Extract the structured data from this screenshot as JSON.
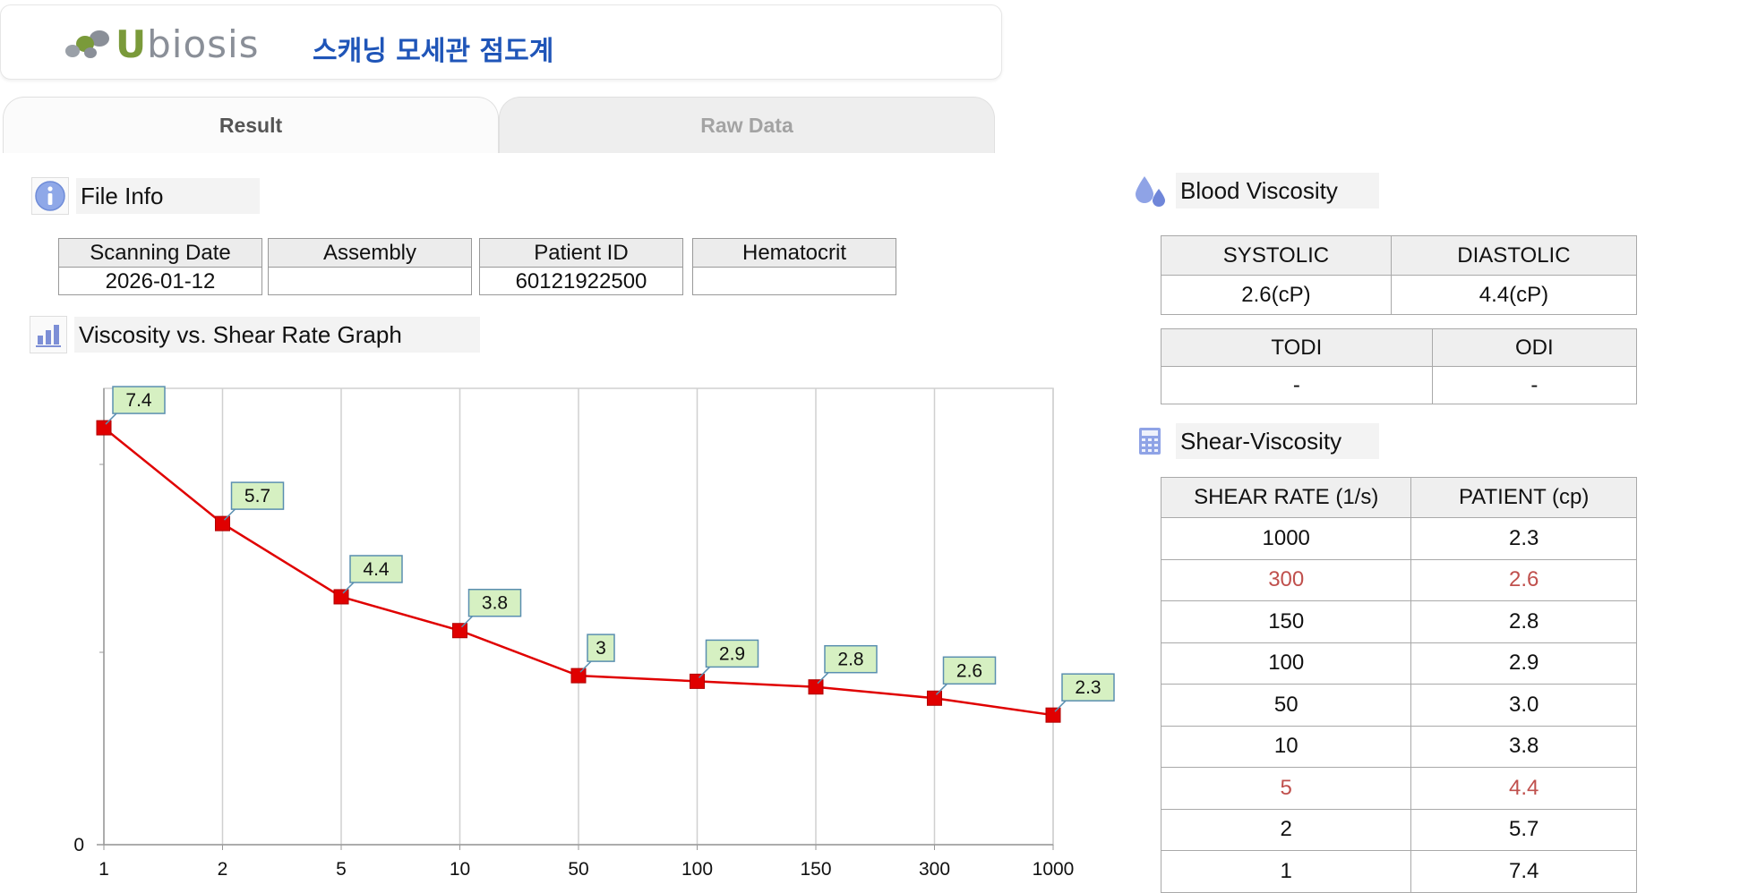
{
  "header": {
    "logo_text": "Ubiosis",
    "app_title": "스캐닝 모세관 점도계"
  },
  "tabs": [
    {
      "label": "Result",
      "active": true
    },
    {
      "label": "Raw Data",
      "active": false
    }
  ],
  "file_info": {
    "title": "File Info",
    "icon": "info-icon",
    "fields": [
      {
        "label": "Scanning Date",
        "value": "2026-01-12"
      },
      {
        "label": "Assembly",
        "value": ""
      },
      {
        "label": "Patient ID",
        "value": "60121922500"
      },
      {
        "label": "Hematocrit",
        "value": ""
      }
    ]
  },
  "graph_section": {
    "title": "Viscosity vs. Shear Rate Graph",
    "icon": "bar-chart-icon"
  },
  "blood_viscosity": {
    "title": "Blood Viscosity",
    "icon": "droplets-icon",
    "headers1": [
      "SYSTOLIC",
      "DIASTOLIC"
    ],
    "values1": [
      "2.6(cP)",
      "4.4(cP)"
    ],
    "headers2": [
      "TODI",
      "ODI"
    ],
    "values2": [
      "-",
      "-"
    ]
  },
  "shear_viscosity": {
    "title": "Shear-Viscosity",
    "icon": "calculator-icon",
    "headers": [
      "SHEAR RATE (1/s)",
      "PATIENT (cp)"
    ],
    "rows": [
      {
        "rate": "1000",
        "patient": "2.3",
        "highlight": false
      },
      {
        "rate": "300",
        "patient": "2.6",
        "highlight": true
      },
      {
        "rate": "150",
        "patient": "2.8",
        "highlight": false
      },
      {
        "rate": "100",
        "patient": "2.9",
        "highlight": false
      },
      {
        "rate": "50",
        "patient": "3.0",
        "highlight": false
      },
      {
        "rate": "10",
        "patient": "3.8",
        "highlight": false
      },
      {
        "rate": "5",
        "patient": "4.4",
        "highlight": true
      },
      {
        "rate": "2",
        "patient": "5.7",
        "highlight": false
      },
      {
        "rate": "1",
        "patient": "7.4",
        "highlight": false
      }
    ]
  },
  "colors": {
    "series": "#e00000",
    "label_bg": "#d6f0c2",
    "label_border": "#5a8fb0",
    "highlight_text": "#c0504d",
    "title_blue": "#1f55b8"
  },
  "chart_data": {
    "type": "line",
    "categories": [
      "1",
      "2",
      "5",
      "10",
      "50",
      "100",
      "150",
      "300",
      "1000"
    ],
    "series": [
      {
        "values": [
          7.4,
          5.7,
          4.4,
          3.8,
          3.0,
          2.9,
          2.8,
          2.6,
          2.3
        ]
      }
    ],
    "data_labels": [
      "7.4",
      "5.7",
      "4.4",
      "3.8",
      "3",
      "2.9",
      "2.8",
      "2.6",
      "2.3"
    ],
    "y_tick_labels": [
      "0"
    ],
    "ylim": [
      0,
      8.1
    ],
    "grid": "vertical",
    "marker": "square"
  }
}
